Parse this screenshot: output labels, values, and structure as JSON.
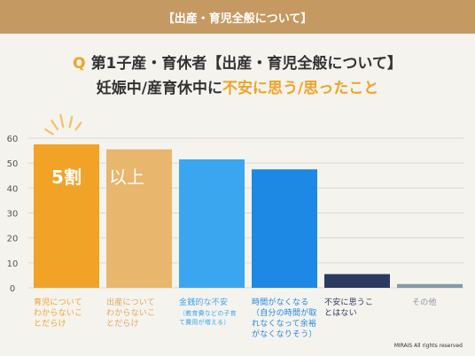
{
  "header": {
    "banner": "【出産・育児全般について】"
  },
  "question": {
    "mark": "Q",
    "line1": "第1子産・育休者【出産・育児全般について】",
    "line2_prefix": "妊娠中/産育休中に",
    "line2_highlight": "不安に思う/思ったこと"
  },
  "annotation": {
    "number": "5割",
    "suffix": "以上"
  },
  "footer": "MIRAIS All rights reserved",
  "colors": {
    "accent": "#f0a326",
    "banner": "#c59a62",
    "bars": [
      "#f0a326",
      "#e9b66d",
      "#3aa6ef",
      "#1e88e5",
      "#2a3a63",
      "#8499a9"
    ],
    "labels": [
      "#f0a326",
      "#e0a85c",
      "#3aa6ef",
      "#1e88e5",
      "#2a3a63",
      "#8499a9"
    ]
  },
  "chart_data": {
    "type": "bar",
    "categories": [
      "育児について\nわからないこ\nとだらけ",
      "出産について\nわからないこ\nとだらけ",
      "金銭的な不安",
      "時間がなくなる\n（自分の時間が取\nれなくなって余裕\nがなくなりそう）",
      "不安に思うこ\nとはない",
      "その他"
    ],
    "sub_labels": [
      "",
      "",
      "（教育費などの子育\nて費用が増える）",
      "",
      "",
      ""
    ],
    "values": [
      57.5,
      55.5,
      51.5,
      47.5,
      5.5,
      1.5
    ],
    "ylim": [
      0,
      60
    ],
    "yticks": [
      "0",
      "10",
      "20",
      "30",
      "40",
      "50",
      "60"
    ],
    "grid": true
  }
}
